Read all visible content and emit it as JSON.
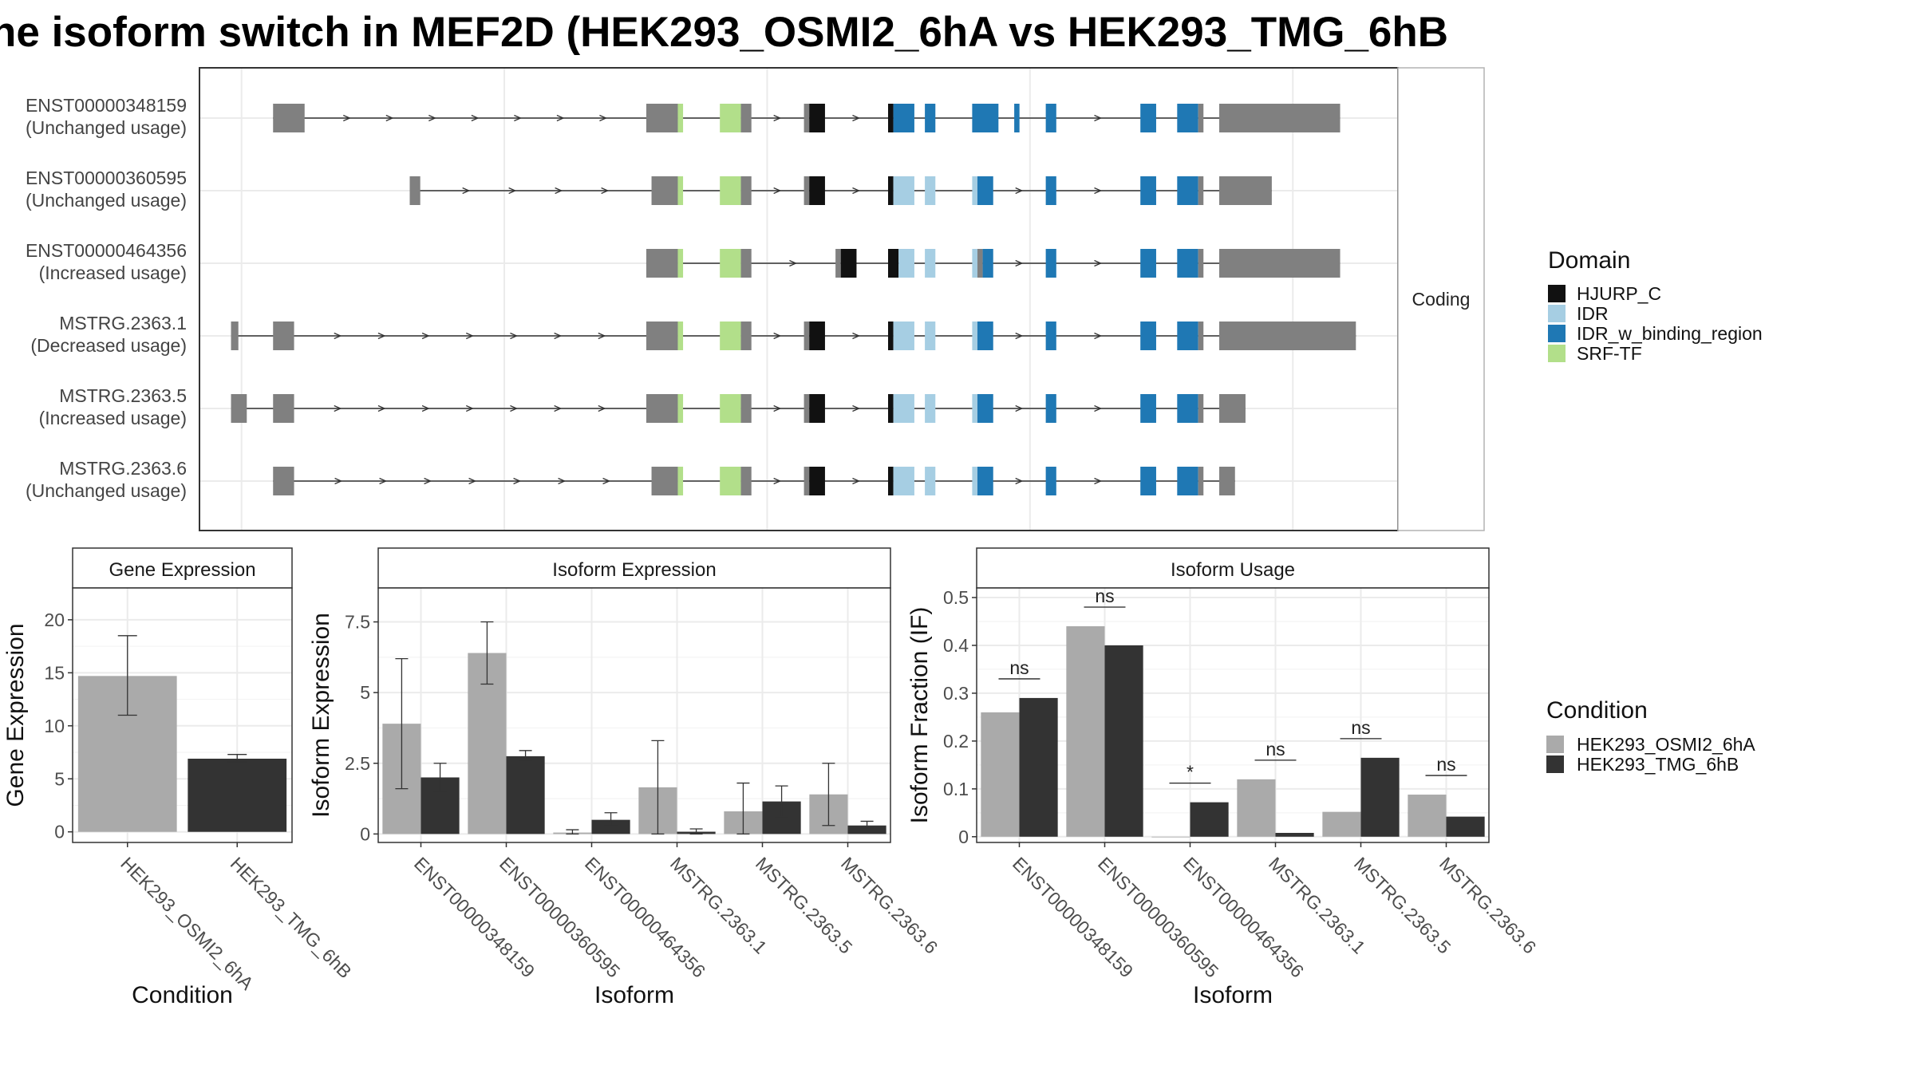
{
  "title": "he isoform switch in MEF2D (HEK293_OSMI2_6hA vs HEK293_TMG_6hB",
  "colors": {
    "utr": "#808080",
    "HJURP_C": "#111111",
    "IDR": "#a6cee3",
    "IDR_w_binding_region": "#1f78b4",
    "SRF-TF": "#b2df8a",
    "cond_A": "#aaaaaa",
    "cond_B": "#333333"
  },
  "structure": {
    "facet_label": "Coding",
    "rows": [
      {
        "id": "ENST00000348159",
        "usage": "(Unchanged usage)",
        "segments": [
          [
            3,
            6,
            "utr"
          ],
          [
            38.5,
            41.5,
            "utr"
          ],
          [
            41.5,
            42,
            "SRF-TF"
          ],
          [
            45.5,
            47.5,
            "SRF-TF"
          ],
          [
            47.5,
            48.5,
            "utr"
          ],
          [
            53.5,
            54,
            "utr"
          ],
          [
            54,
            55.5,
            "HJURP_C"
          ],
          [
            61.5,
            62,
            "HJURP_C"
          ],
          [
            62,
            64,
            "IDR_w_binding_region"
          ],
          [
            65,
            66,
            "IDR_w_binding_region"
          ],
          [
            69.5,
            72,
            "IDR_w_binding_region"
          ],
          [
            73.5,
            74,
            "IDR_w_binding_region"
          ],
          [
            76.5,
            77.5,
            "IDR_w_binding_region"
          ],
          [
            85.5,
            87,
            "IDR_w_binding_region"
          ],
          [
            89,
            91,
            "IDR_w_binding_region"
          ],
          [
            91,
            91.5,
            "utr"
          ],
          [
            93,
            104.5,
            "utr"
          ]
        ]
      },
      {
        "id": "ENST00000360595",
        "usage": "(Unchanged usage)",
        "segments": [
          [
            16,
            17,
            "utr"
          ],
          [
            39,
            41.5,
            "utr"
          ],
          [
            41.5,
            42,
            "SRF-TF"
          ],
          [
            45.5,
            47.5,
            "SRF-TF"
          ],
          [
            47.5,
            48.5,
            "utr"
          ],
          [
            53.5,
            54,
            "utr"
          ],
          [
            54,
            55.5,
            "HJURP_C"
          ],
          [
            61.5,
            62,
            "HJURP_C"
          ],
          [
            62,
            64,
            "IDR"
          ],
          [
            65,
            66,
            "IDR"
          ],
          [
            69.5,
            70,
            "IDR"
          ],
          [
            70,
            71.5,
            "IDR_w_binding_region"
          ],
          [
            76.5,
            77.5,
            "IDR_w_binding_region"
          ],
          [
            85.5,
            87,
            "IDR_w_binding_region"
          ],
          [
            89,
            91,
            "IDR_w_binding_region"
          ],
          [
            91,
            91.5,
            "utr"
          ],
          [
            93,
            98,
            "utr"
          ]
        ]
      },
      {
        "id": "ENST00000464356",
        "usage": "(Increased usage)",
        "segments": [
          [
            38.5,
            41.5,
            "utr"
          ],
          [
            41.5,
            42,
            "SRF-TF"
          ],
          [
            45.5,
            47.5,
            "SRF-TF"
          ],
          [
            47.5,
            48.5,
            "utr"
          ],
          [
            56.5,
            57,
            "utr"
          ],
          [
            57,
            58.5,
            "HJURP_C"
          ],
          [
            61.5,
            62.5,
            "HJURP_C"
          ],
          [
            62.5,
            64,
            "IDR"
          ],
          [
            65,
            66,
            "IDR"
          ],
          [
            69.5,
            70,
            "IDR"
          ],
          [
            70,
            70.5,
            "utr"
          ],
          [
            70.5,
            71.5,
            "IDR_w_binding_region"
          ],
          [
            76.5,
            77.5,
            "IDR_w_binding_region"
          ],
          [
            85.5,
            87,
            "IDR_w_binding_region"
          ],
          [
            89,
            91,
            "IDR_w_binding_region"
          ],
          [
            91,
            91.5,
            "utr"
          ],
          [
            93,
            104.5,
            "utr"
          ]
        ]
      },
      {
        "id": "MSTRG.2363.1",
        "usage": "(Decreased usage)",
        "segments": [
          [
            -1,
            -0.3,
            "utr"
          ],
          [
            3,
            5,
            "utr"
          ],
          [
            38.5,
            41.5,
            "utr"
          ],
          [
            41.5,
            42,
            "SRF-TF"
          ],
          [
            45.5,
            47.5,
            "SRF-TF"
          ],
          [
            47.5,
            48.5,
            "utr"
          ],
          [
            53.5,
            54,
            "utr"
          ],
          [
            54,
            55.5,
            "HJURP_C"
          ],
          [
            61.5,
            62,
            "HJURP_C"
          ],
          [
            62,
            64,
            "IDR"
          ],
          [
            65,
            66,
            "IDR"
          ],
          [
            69.5,
            70,
            "IDR"
          ],
          [
            70,
            71.5,
            "IDR_w_binding_region"
          ],
          [
            76.5,
            77.5,
            "IDR_w_binding_region"
          ],
          [
            85.5,
            87,
            "IDR_w_binding_region"
          ],
          [
            89,
            91,
            "IDR_w_binding_region"
          ],
          [
            91,
            91.5,
            "utr"
          ],
          [
            93,
            106,
            "utr"
          ]
        ]
      },
      {
        "id": "MSTRG.2363.5",
        "usage": "(Increased usage)",
        "segments": [
          [
            -1,
            0.5,
            "utr"
          ],
          [
            3,
            5,
            "utr"
          ],
          [
            38.5,
            41.5,
            "utr"
          ],
          [
            41.5,
            42,
            "SRF-TF"
          ],
          [
            45.5,
            47.5,
            "SRF-TF"
          ],
          [
            47.5,
            48.5,
            "utr"
          ],
          [
            53.5,
            54,
            "utr"
          ],
          [
            54,
            55.5,
            "HJURP_C"
          ],
          [
            61.5,
            62,
            "HJURP_C"
          ],
          [
            62,
            64,
            "IDR"
          ],
          [
            65,
            66,
            "IDR"
          ],
          [
            69.5,
            70,
            "IDR"
          ],
          [
            70,
            71.5,
            "IDR_w_binding_region"
          ],
          [
            76.5,
            77.5,
            "IDR_w_binding_region"
          ],
          [
            85.5,
            87,
            "IDR_w_binding_region"
          ],
          [
            89,
            91,
            "IDR_w_binding_region"
          ],
          [
            91,
            91.5,
            "utr"
          ],
          [
            93,
            95.5,
            "utr"
          ]
        ]
      },
      {
        "id": "MSTRG.2363.6",
        "usage": "(Unchanged usage)",
        "segments": [
          [
            3,
            5,
            "utr"
          ],
          [
            39,
            41.5,
            "utr"
          ],
          [
            41.5,
            42,
            "SRF-TF"
          ],
          [
            45.5,
            47.5,
            "SRF-TF"
          ],
          [
            47.5,
            48.5,
            "utr"
          ],
          [
            53.5,
            54,
            "utr"
          ],
          [
            54,
            55.5,
            "HJURP_C"
          ],
          [
            61.5,
            62,
            "HJURP_C"
          ],
          [
            62,
            64,
            "IDR"
          ],
          [
            65,
            66,
            "IDR"
          ],
          [
            69.5,
            70,
            "IDR"
          ],
          [
            70,
            71.5,
            "IDR_w_binding_region"
          ],
          [
            76.5,
            77.5,
            "IDR_w_binding_region"
          ],
          [
            85.5,
            87,
            "IDR_w_binding_region"
          ],
          [
            89,
            91,
            "IDR_w_binding_region"
          ],
          [
            91,
            91.5,
            "utr"
          ],
          [
            93,
            94.5,
            "utr"
          ]
        ]
      }
    ]
  },
  "legends": {
    "domain_title": "Domain",
    "domains": [
      "HJURP_C",
      "IDR",
      "IDR_w_binding_region",
      "SRF-TF"
    ],
    "condition_title": "Condition",
    "conditions": [
      "HEK293_OSMI2_6hA",
      "HEK293_TMG_6hB"
    ]
  },
  "chart_data": [
    {
      "type": "bar",
      "panel": "Gene Expression",
      "xlabel": "Condition",
      "ylabel": "Gene Expression",
      "ylim": [
        -1,
        23
      ],
      "yticks": [
        0,
        5,
        10,
        15,
        20
      ],
      "categories": [
        "HEK293_OSMI2_6hA",
        "HEK293_TMG_6hB"
      ],
      "values": [
        14.7,
        6.9
      ],
      "errors": [
        [
          11.0,
          18.5
        ],
        [
          6.6,
          7.3
        ]
      ]
    },
    {
      "type": "bar",
      "panel": "Isoform Expression",
      "xlabel": "Isoform",
      "ylabel": "Isoform Expression",
      "ylim": [
        -0.3,
        8.7
      ],
      "yticks": [
        0.0,
        2.5,
        5.0,
        7.5
      ],
      "categories": [
        "ENST00000348159",
        "ENST00000360595",
        "ENST00000464356",
        "MSTRG.2363.1",
        "MSTRG.2363.5",
        "MSTRG.2363.6"
      ],
      "series": [
        {
          "name": "HEK293_OSMI2_6hA",
          "values": [
            3.9,
            6.4,
            0.05,
            1.65,
            0.8,
            1.4
          ],
          "errors": [
            [
              1.6,
              6.2
            ],
            [
              5.3,
              7.5
            ],
            [
              0.0,
              0.15
            ],
            [
              0.0,
              3.3
            ],
            [
              0.0,
              1.8
            ],
            [
              0.3,
              2.5
            ]
          ]
        },
        {
          "name": "HEK293_TMG_6hB",
          "values": [
            2.0,
            2.75,
            0.5,
            0.08,
            1.15,
            0.3
          ],
          "errors": [
            [
              1.5,
              2.5
            ],
            [
              2.6,
              2.95
            ],
            [
              0.3,
              0.75
            ],
            [
              0.0,
              0.18
            ],
            [
              0.6,
              1.7
            ],
            [
              0.2,
              0.45
            ]
          ]
        }
      ]
    },
    {
      "type": "bar",
      "panel": "Isoform Usage",
      "xlabel": "Isoform",
      "ylabel": "Isoform Fraction (IF)",
      "ylim": [
        -0.012,
        0.52
      ],
      "yticks": [
        0.0,
        0.1,
        0.2,
        0.3,
        0.4,
        0.5
      ],
      "categories": [
        "ENST00000348159",
        "ENST00000360595",
        "ENST00000464356",
        "MSTRG.2363.1",
        "MSTRG.2363.5",
        "MSTRG.2363.6"
      ],
      "series": [
        {
          "name": "HEK293_OSMI2_6hA",
          "values": [
            0.26,
            0.44,
            0.0,
            0.12,
            0.052,
            0.088
          ]
        },
        {
          "name": "HEK293_TMG_6hB",
          "values": [
            0.29,
            0.4,
            0.072,
            0.008,
            0.165,
            0.042
          ]
        }
      ],
      "annotations": [
        "ns",
        "ns",
        "*",
        "ns",
        "ns",
        "ns"
      ]
    }
  ]
}
